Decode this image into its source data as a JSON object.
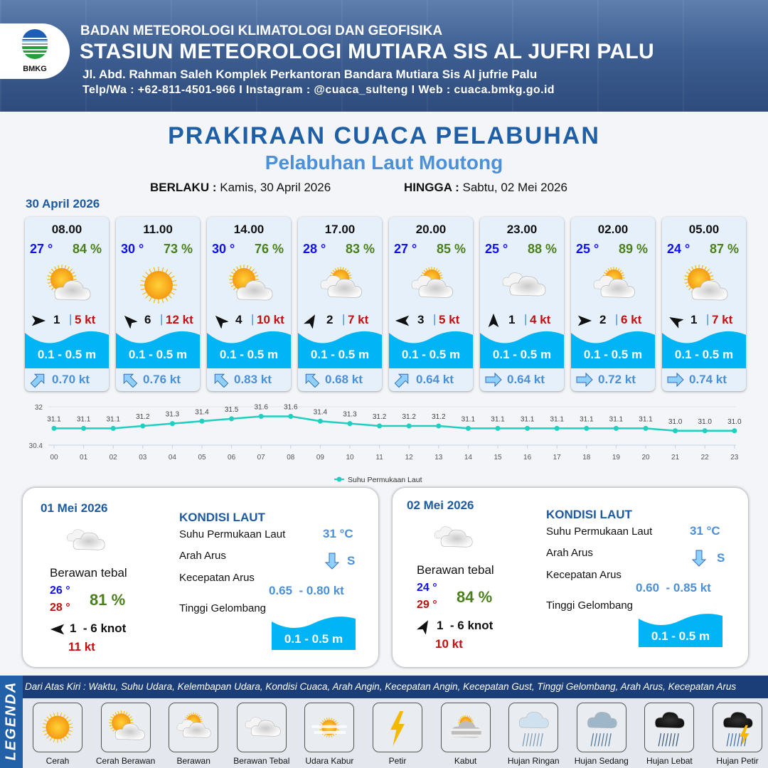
{
  "header": {
    "logo_text": "BMKG",
    "agency": "BADAN METEOROLOGI KLIMATOLOGI DAN GEOFISIKA",
    "station": "STASIUN METEOROLOGI MUTIARA SIS AL JUFRI PALU",
    "address": "Jl. Abd. Rahman Saleh Komplek Perkantoran Bandara Mutiara Sis Al jufrie Palu",
    "contact": "Telp/Wa : +62-811-4501-966  I  Instagram : @cuaca_sulteng  I  Web : cuaca.bmkg.go.id"
  },
  "title": "PRAKIRAAN CUACA PELABUHAN",
  "subtitle": "Pelabuhan Laut Moutong",
  "validity": {
    "from_label": "BERLAKU :",
    "from": "Kamis, 30 April 2026",
    "to_label": "HINGGA :",
    "to": "Sabtu, 02 Mei 2026"
  },
  "day0_date": "30 April 2026",
  "colors": {
    "temp": "#1010f0",
    "humidity": "#4a7f1c",
    "gust": "#c01010",
    "wave": "#00b4f5",
    "current": "#4b8fd6",
    "title": "#1f5fa6"
  },
  "cards": [
    {
      "time": "08.00",
      "temp": "27 °",
      "hum": "84 %",
      "icon": "cerah-berawan",
      "wind_dir_deg": 90,
      "wind": "1",
      "sep": "|",
      "gust": "5 kt",
      "wave": "0.1 - 0.5 m",
      "cur_dir_deg": 45,
      "cur": "0.70 kt"
    },
    {
      "time": "11.00",
      "temp": "30 °",
      "hum": "73 %",
      "icon": "cerah",
      "wind_dir_deg": 315,
      "wind": "6",
      "sep": "|",
      "gust": "12 kt",
      "wave": "0.1 - 0.5 m",
      "cur_dir_deg": 315,
      "cur": "0.76 kt"
    },
    {
      "time": "14.00",
      "temp": "30 °",
      "hum": "76 %",
      "icon": "cerah-berawan",
      "wind_dir_deg": 315,
      "wind": "4",
      "sep": "|",
      "gust": "10 kt",
      "wave": "0.1 - 0.5 m",
      "cur_dir_deg": 315,
      "cur": "0.83 kt"
    },
    {
      "time": "17.00",
      "temp": "28 °",
      "hum": "83 %",
      "icon": "berawan",
      "wind_dir_deg": 30,
      "wind": "2",
      "sep": "|",
      "gust": "7 kt",
      "wave": "0.1 - 0.5 m",
      "cur_dir_deg": 315,
      "cur": "0.68 kt"
    },
    {
      "time": "20.00",
      "temp": "27 °",
      "hum": "85 %",
      "icon": "berawan",
      "wind_dir_deg": 270,
      "wind": "3",
      "sep": "|",
      "gust": "5 kt",
      "wave": "0.1 - 0.5 m",
      "cur_dir_deg": 45,
      "cur": "0.64 kt"
    },
    {
      "time": "23.00",
      "temp": "25 °",
      "hum": "88 %",
      "icon": "berawan-tebal",
      "wind_dir_deg": 0,
      "wind": "1",
      "sep": "|",
      "gust": "4 kt",
      "wave": "0.1 - 0.5 m",
      "cur_dir_deg": 90,
      "cur": "0.64 kt"
    },
    {
      "time": "02.00",
      "temp": "25 °",
      "hum": "89 %",
      "icon": "berawan",
      "wind_dir_deg": 90,
      "wind": "2",
      "sep": "|",
      "gust": "6 kt",
      "wave": "0.1 - 0.5 m",
      "cur_dir_deg": 90,
      "cur": "0.72 kt"
    },
    {
      "time": "05.00",
      "temp": "24 °",
      "hum": "87 %",
      "icon": "cerah-berawan",
      "wind_dir_deg": 300,
      "wind": "1",
      "sep": "|",
      "gust": "7 kt",
      "wave": "0.1 - 0.5 m",
      "cur_dir_deg": 90,
      "cur": "0.74 kt"
    }
  ],
  "chart_data": {
    "type": "line",
    "categories": [
      "00",
      "01",
      "02",
      "03",
      "04",
      "05",
      "06",
      "07",
      "08",
      "09",
      "10",
      "11",
      "12",
      "13",
      "14",
      "15",
      "16",
      "17",
      "18",
      "19",
      "20",
      "21",
      "22",
      "23"
    ],
    "series": [
      {
        "name": "Suhu Permukaan Laut",
        "values": [
          31.1,
          31.1,
          31.1,
          31.2,
          31.3,
          31.4,
          31.5,
          31.6,
          31.6,
          31.4,
          31.3,
          31.2,
          31.2,
          31.2,
          31.1,
          31.1,
          31.1,
          31.1,
          31.1,
          31.1,
          31.1,
          31.0,
          31.0,
          31.0
        ],
        "color": "#1fcfbf"
      }
    ],
    "y_ticks": [
      "32",
      "30.4"
    ],
    "ylim": [
      30.4,
      32
    ],
    "legend": "bottom",
    "grid": true
  },
  "days": [
    {
      "date": "01 Mei 2026",
      "condition": "Berawan tebal",
      "icon": "berawan-tebal",
      "tmin": "26 °",
      "tmax": "28 °",
      "hum": "81 %",
      "wind_dir_deg": 270,
      "wind": "1  - 6 knot",
      "gust": "11 kt",
      "sea": {
        "title": "KONDISI LAUT",
        "sst_label": "Suhu Permukaan Laut",
        "sst": "31 °C",
        "dir_label": "Arah Arus",
        "dir": "S",
        "speed_label": "Kecepatan Arus",
        "speed": "0.65  - 0.80 kt",
        "wave_label": "Tinggi Gelombang",
        "wave": "0.1 - 0.5 m"
      }
    },
    {
      "date": "02 Mei 2026",
      "condition": "Berawan tebal",
      "icon": "berawan-tebal",
      "tmin": "24 °",
      "tmax": "29 °",
      "hum": "84 %",
      "wind_dir_deg": 30,
      "wind": "1  - 6 knot",
      "gust": "10 kt",
      "sea": {
        "title": "KONDISI LAUT",
        "sst_label": "Suhu Permukaan Laut",
        "sst": "31 °C",
        "dir_label": "Arah Arus",
        "dir": "S",
        "speed_label": "Kecepatan Arus",
        "speed": "0.60  - 0.85 kt",
        "wave_label": "Tinggi Gelombang",
        "wave": "0.1 - 0.5 m"
      }
    }
  ],
  "legend": {
    "title": "LEGENDA",
    "description": "Dari Atas Kiri : Waktu, Suhu Udara, Kelembapan Udara, Kondisi Cuaca, Arah Angin, Kecepatan Angin, Kecepatan Gust, Tinggi Gelombang, Arah Arus, Kecepatan Arus",
    "items": [
      {
        "label": "Cerah",
        "icon": "cerah"
      },
      {
        "label": "Cerah Berawan",
        "icon": "cerah-berawan"
      },
      {
        "label": "Berawan",
        "icon": "berawan"
      },
      {
        "label": "Berawan Tebal",
        "icon": "berawan-tebal"
      },
      {
        "label": "Udara Kabur",
        "icon": "udara-kabur"
      },
      {
        "label": "Petir",
        "icon": "petir"
      },
      {
        "label": "Kabut",
        "icon": "kabut"
      },
      {
        "label": "Hujan Ringan",
        "icon": "hujan-ringan"
      },
      {
        "label": "Hujan Sedang",
        "icon": "hujan-sedang"
      },
      {
        "label": "Hujan Lebat",
        "icon": "hujan-lebat"
      },
      {
        "label": "Hujan Petir",
        "icon": "hujan-petir"
      }
    ]
  }
}
